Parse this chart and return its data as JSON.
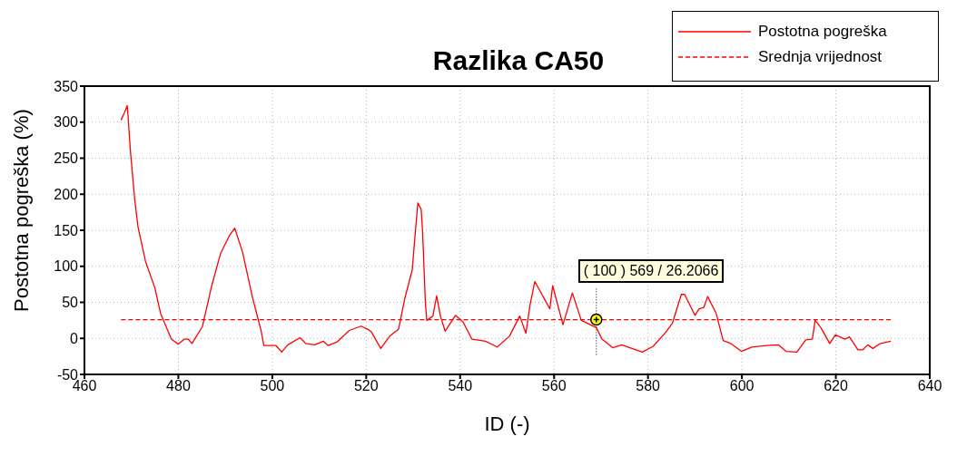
{
  "chart_data": {
    "type": "line",
    "title": "Razlika CA50",
    "xlabel": "ID (-)",
    "ylabel": "Postotna pogreška (%)",
    "xlim": [
      460,
      640
    ],
    "xticks": [
      460,
      480,
      500,
      520,
      540,
      560,
      580,
      600,
      620,
      640
    ],
    "ylim": [
      -50,
      350
    ],
    "yticks": [
      -50,
      0,
      50,
      100,
      150,
      200,
      250,
      300,
      350
    ],
    "grid": true,
    "legend": "top right",
    "marker": "none",
    "annotations": [
      {
        "text": "( 100 ) 569 / 26.2066",
        "x": 569,
        "y": 26.2066
      }
    ],
    "series": [
      {
        "name": "Postotna pogreška",
        "color": "#ff0000",
        "line_style": "solid",
        "x": [
          467.8,
          468.5,
          469.1,
          469.3,
          469.8,
          470.7,
          471.4,
          473.0,
          475.0,
          476.2,
          478.5,
          480.0,
          481.3,
          482.1,
          482.9,
          485.1,
          487.1,
          489.0,
          490.9,
          492.0,
          493.7,
          495.7,
          497.6,
          498.2,
          500.8,
          502.0,
          503.3,
          505.9,
          507.1,
          509.0,
          510.9,
          511.9,
          513.8,
          516.4,
          518.9,
          520.5,
          521.1,
          523.1,
          525.0,
          526.9,
          528.2,
          529.8,
          530.4,
          531.0,
          531.7,
          532.0,
          532.6,
          532.9,
          534.2,
          535.0,
          535.8,
          536.8,
          539.0,
          540.6,
          542.5,
          545.4,
          547.9,
          550.5,
          552.7,
          554.0,
          554.9,
          555.9,
          559.1,
          559.7,
          561.9,
          563.9,
          565.8,
          569.0,
          570.2,
          572.5,
          574.4,
          576.6,
          578.8,
          581.1,
          583.6,
          585.2,
          587.1,
          587.8,
          590.0,
          590.9,
          591.9,
          592.7,
          594.5,
          596.0,
          597.6,
          599.9,
          602.1,
          605.3,
          607.8,
          609.4,
          611.7,
          613.6,
          615.0,
          615.6,
          616.8,
          618.7,
          619.9,
          621.9,
          622.9,
          624.7,
          625.7,
          626.8,
          627.9,
          629.5,
          631.7
        ],
        "values": [
          303,
          313,
          323,
          307,
          259,
          193,
          155,
          107,
          70,
          35,
          -1,
          -8,
          -1,
          -1,
          -7,
          16,
          73,
          118,
          143,
          153,
          119,
          59,
          11,
          -10,
          -10,
          -19,
          -9,
          1,
          -7,
          -9,
          -4,
          -10,
          -5,
          11,
          17,
          12,
          9,
          -14,
          3,
          13,
          55,
          95,
          143,
          188,
          179,
          149,
          49,
          25,
          31,
          59,
          31,
          10,
          32,
          23,
          -1,
          -4,
          -12,
          3,
          31,
          7,
          47,
          79,
          41,
          73,
          19,
          63,
          25,
          15,
          -1,
          -13,
          -9,
          -14,
          -19,
          -11,
          7,
          21,
          61,
          61,
          32,
          41,
          43,
          58,
          35,
          -3,
          -7,
          -18,
          -12,
          -10,
          -9,
          -18,
          -19,
          -2,
          -1,
          25,
          15,
          -7,
          5,
          -1,
          2,
          -16,
          -16,
          -9,
          -14,
          -7,
          -4
        ]
      },
      {
        "name": "Srednja vrijednost",
        "color": "#ff0000",
        "line_style": "dashed",
        "x": [
          467.8,
          631.7
        ],
        "values": [
          26,
          26
        ]
      }
    ]
  }
}
